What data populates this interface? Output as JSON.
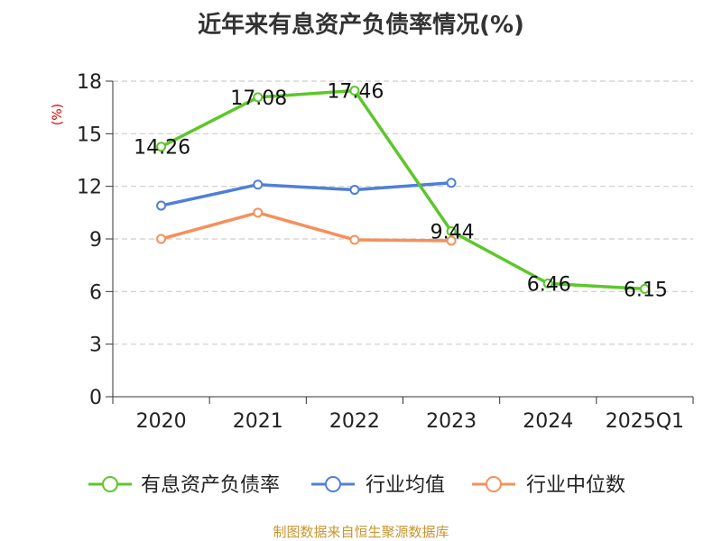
{
  "chart_data": {
    "type": "line",
    "title": "近年来有息资产负债率情况(%)",
    "xlabel": "",
    "ylabel": "(%)",
    "categories": [
      "2020",
      "2021",
      "2022",
      "2023",
      "2024",
      "2025Q1"
    ],
    "ylim": [
      0,
      18
    ],
    "yticks": [
      0,
      3,
      6,
      9,
      12,
      15,
      18
    ],
    "grid": true,
    "legend_position": "bottom",
    "series": [
      {
        "name": "有息资产负债率",
        "color": "#5cc72a",
        "values": [
          14.26,
          17.08,
          17.46,
          9.44,
          6.46,
          6.15
        ],
        "show_labels": true
      },
      {
        "name": "行业均值",
        "color": "#4f7fd8",
        "values": [
          10.9,
          12.1,
          11.8,
          12.2,
          null,
          null
        ],
        "show_labels": false
      },
      {
        "name": "行业中位数",
        "color": "#f5905a",
        "values": [
          9.0,
          10.5,
          8.95,
          8.9,
          null,
          null
        ],
        "show_labels": false
      }
    ],
    "data_labels": [
      "14.26",
      "17.08",
      "17.46",
      "9.44",
      "6.46",
      "6.15"
    ]
  },
  "source_text": "制图数据来自恒生聚源数据库"
}
